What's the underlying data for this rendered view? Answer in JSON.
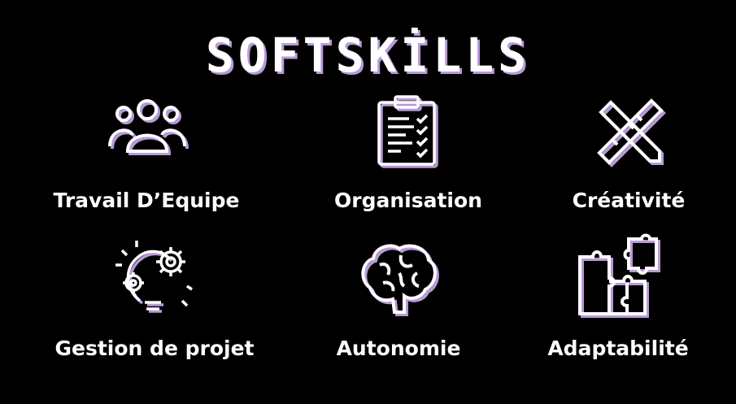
{
  "title": "SOFTSKİLLS",
  "colors": {
    "background": "#000000",
    "foreground": "#ffffff",
    "shadow": "#b79ad8"
  },
  "skills": [
    {
      "label": "Travail D’Equipe",
      "icon": "team-icon"
    },
    {
      "label": "Organisation",
      "icon": "clipboard-checklist-icon"
    },
    {
      "label": "Créativité",
      "icon": "pencil-ruler-icon"
    },
    {
      "label": "Gestion de projet",
      "icon": "bulb-gears-icon"
    },
    {
      "label": "Autonomie",
      "icon": "brain-icon"
    },
    {
      "label": "Adaptabilité",
      "icon": "puzzle-icon"
    }
  ]
}
